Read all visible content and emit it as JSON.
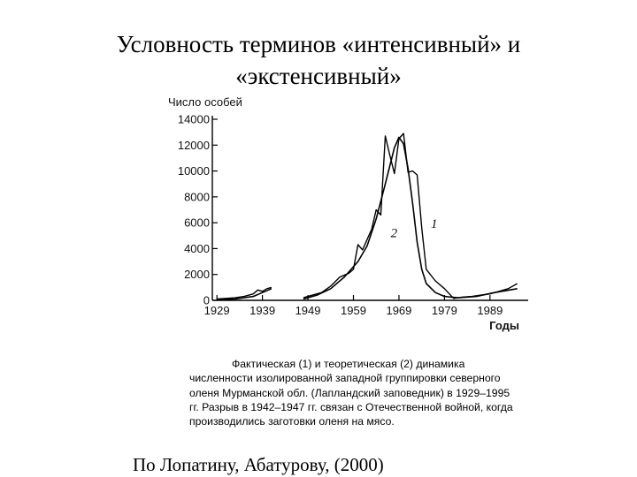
{
  "slide": {
    "title_line1": "Условность терминов «интенсивный» и",
    "title_line2": "«экстенсивный»",
    "caption": "Фактическая (1) и теоретическая (2) динамика численности изолированной западной группировки северного оленя Мурманской обл. (Лапландский заповедник) в 1929–1995 гг. Разрыв в 1942–1947 гг. связан с Отечественной войной, когда производились заготовки оленя на мясо.",
    "source": "По Лопатину, Абатурову, (2000)"
  },
  "chart_data": {
    "type": "line",
    "ylabel": "Число особей",
    "xlabel": "Годы",
    "ylim": [
      0,
      14000
    ],
    "xlim": [
      1928,
      1997
    ],
    "yticks": [
      0,
      2000,
      4000,
      6000,
      8000,
      10000,
      12000,
      14000
    ],
    "ytick_labels": [
      "0",
      "2000",
      "4000",
      "6000",
      "8000",
      "10000",
      "12000",
      "14000"
    ],
    "xticks": [
      1929,
      1939,
      1949,
      1959,
      1969,
      1979,
      1989
    ],
    "xtick_labels": [
      "1929",
      "1939",
      "1949",
      "1959",
      "1969",
      "1979",
      "1989"
    ],
    "grid": false,
    "series": [
      {
        "name": "1",
        "segments": [
          [
            [
              1929,
              100
            ],
            [
              1931,
              150
            ],
            [
              1933,
              200
            ],
            [
              1935,
              300
            ],
            [
              1937,
              500
            ],
            [
              1938,
              800
            ],
            [
              1939,
              700
            ],
            [
              1940,
              900
            ],
            [
              1941,
              1000
            ]
          ],
          [
            [
              1948,
              200
            ],
            [
              1950,
              400
            ],
            [
              1952,
              600
            ],
            [
              1954,
              1100
            ],
            [
              1956,
              1800
            ],
            [
              1958,
              2100
            ],
            [
              1959,
              2400
            ],
            [
              1960,
              4300
            ],
            [
              1961,
              3900
            ],
            [
              1962,
              4700
            ],
            [
              1963,
              5500
            ],
            [
              1964,
              7000
            ],
            [
              1965,
              6600
            ],
            [
              1966,
              12700
            ],
            [
              1967,
              11200
            ],
            [
              1968,
              9800
            ],
            [
              1969,
              12500
            ],
            [
              1970,
              12900
            ],
            [
              1971,
              9900
            ],
            [
              1972,
              10000
            ],
            [
              1973,
              9700
            ],
            [
              1974,
              5600
            ],
            [
              1975,
              2400
            ],
            [
              1977,
              1500
            ],
            [
              1979,
              900
            ],
            [
              1981,
              150
            ],
            [
              1983,
              250
            ],
            [
              1985,
              300
            ],
            [
              1987,
              400
            ],
            [
              1989,
              500
            ],
            [
              1991,
              700
            ],
            [
              1993,
              900
            ],
            [
              1995,
              1300
            ]
          ]
        ]
      },
      {
        "name": "2",
        "segments": [
          [
            [
              1929,
              50
            ],
            [
              1933,
              100
            ],
            [
              1937,
              300
            ],
            [
              1939,
              600
            ],
            [
              1941,
              900
            ]
          ],
          [
            [
              1948,
              100
            ],
            [
              1951,
              400
            ],
            [
              1954,
              900
            ],
            [
              1957,
              1800
            ],
            [
              1960,
              3000
            ],
            [
              1962,
              4200
            ],
            [
              1964,
              6300
            ],
            [
              1966,
              9000
            ],
            [
              1968,
              11800
            ],
            [
              1969,
              12600
            ],
            [
              1970,
              12100
            ],
            [
              1971,
              10200
            ],
            [
              1972,
              7500
            ],
            [
              1973,
              4500
            ],
            [
              1974,
              2400
            ],
            [
              1975,
              1300
            ],
            [
              1977,
              600
            ],
            [
              1979,
              300
            ],
            [
              1982,
              200
            ],
            [
              1986,
              300
            ],
            [
              1990,
              600
            ],
            [
              1995,
              900
            ]
          ]
        ]
      }
    ]
  }
}
